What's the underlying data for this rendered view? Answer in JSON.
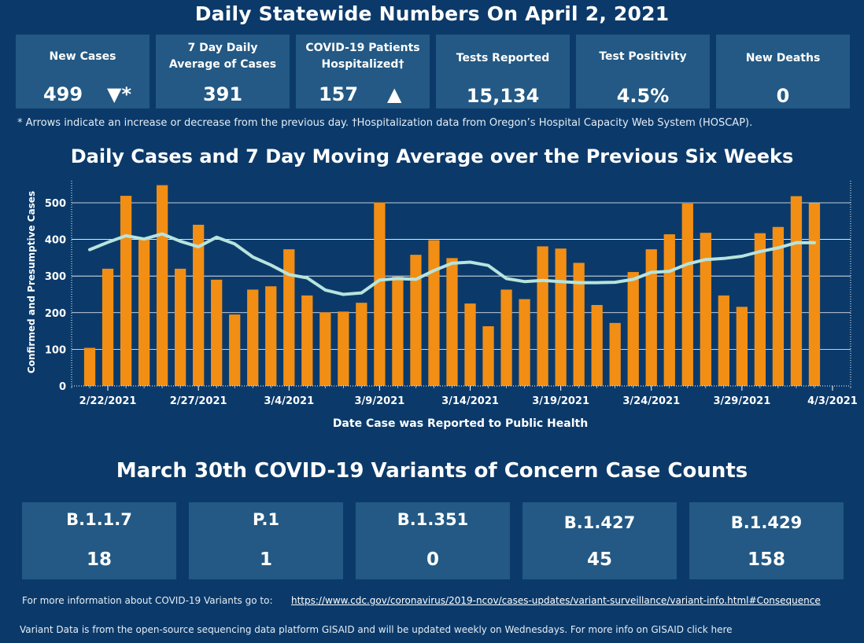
{
  "header": {
    "title": "Daily Statewide Numbers On April 2, 2021"
  },
  "stats": [
    {
      "label": "New Cases",
      "value": "499",
      "arrow": "▼*"
    },
    {
      "label": "7 Day Daily Average of Cases",
      "value": "391",
      "arrow": ""
    },
    {
      "label": "COVID-19 Patients Hospitalized†",
      "value": "157",
      "arrow": "▲"
    },
    {
      "label": "Tests Reported",
      "value": "15,134",
      "arrow": ""
    },
    {
      "label": "Test Positivity",
      "value": "4.5%",
      "arrow": ""
    },
    {
      "label": "New Deaths",
      "value": "0",
      "arrow": ""
    }
  ],
  "note": "* Arrows indicate an increase or decrease from the previous day. †Hospitalization data from Oregon’s Hospital Capacity Web System (HOSCAP).",
  "chart_data": {
    "type": "bar",
    "title": "Daily Cases and 7 Day Moving Average over the Previous Six Weeks",
    "xlabel": "Date Case was Reported to Public Health",
    "ylabel": "Confirmed and Presumptive Cases",
    "ylim": [
      0,
      560
    ],
    "yticks": [
      0,
      100,
      200,
      300,
      400,
      500
    ],
    "x_tick_labels": [
      "2/22/2021",
      "2/27/2021",
      "3/4/2021",
      "3/9/2021",
      "3/14/2021",
      "3/19/2021",
      "3/24/2021",
      "3/29/2021",
      "4/3/2021"
    ],
    "x_start": "2/20/2021",
    "x_end": "4/4/2021",
    "categories": [
      "2/21",
      "2/22",
      "2/23",
      "2/24",
      "2/25",
      "2/26",
      "2/27",
      "2/28",
      "3/1",
      "3/2",
      "3/3",
      "3/4",
      "3/5",
      "3/6",
      "3/7",
      "3/8",
      "3/9",
      "3/10",
      "3/11",
      "3/12",
      "3/13",
      "3/14",
      "3/15",
      "3/16",
      "3/17",
      "3/18",
      "3/19",
      "3/20",
      "3/21",
      "3/22",
      "3/23",
      "3/24",
      "3/25",
      "3/26",
      "3/27",
      "3/28",
      "3/29",
      "3/30",
      "3/31",
      "4/1",
      "4/2"
    ],
    "series": [
      {
        "type": "bar",
        "color": "#f28e14",
        "values": [
          104,
          320,
          519,
          400,
          548,
          320,
          440,
          290,
          195,
          263,
          272,
          373,
          247,
          201,
          203,
          227,
          501,
          298,
          358,
          398,
          349,
          225,
          163,
          263,
          237,
          381,
          375,
          336,
          221,
          172,
          311,
          373,
          414,
          498,
          418,
          247,
          216,
          417,
          434,
          518,
          499
        ]
      },
      {
        "type": "line",
        "color": "#b7e4dd",
        "values": [
          372,
          392,
          410,
          401,
          415,
          395,
          380,
          406,
          388,
          352,
          330,
          304,
          295,
          262,
          250,
          254,
          289,
          293,
          291,
          315,
          335,
          338,
          329,
          293,
          285,
          288,
          285,
          282,
          282,
          283,
          291,
          310,
          313,
          333,
          345,
          348,
          354,
          367,
          377,
          391,
          391
        ]
      }
    ],
    "grid": true
  },
  "variants": {
    "title": "March 30th  COVID-19 Variants of Concern Case Counts",
    "items": [
      {
        "label": "B.1.1.7",
        "value": "18"
      },
      {
        "label": "P.1",
        "value": "1"
      },
      {
        "label": "B.1.351",
        "value": "0"
      },
      {
        "label": "B.1.427",
        "value": "45"
      },
      {
        "label": "B.1.429",
        "value": "158"
      }
    ]
  },
  "footer": {
    "info_text": "For more information about COVID-19 Variants go to:",
    "info_link": "https://www.cdc.gov/coronavirus/2019-ncov/cases-updates/variant-surveillance/variant-info.html#Consequence",
    "gisaid_text": "Variant Data is from the open-source sequencing data platform GISAID and will be updated weekly on Wednesdays. For more info on GISAID click here"
  }
}
